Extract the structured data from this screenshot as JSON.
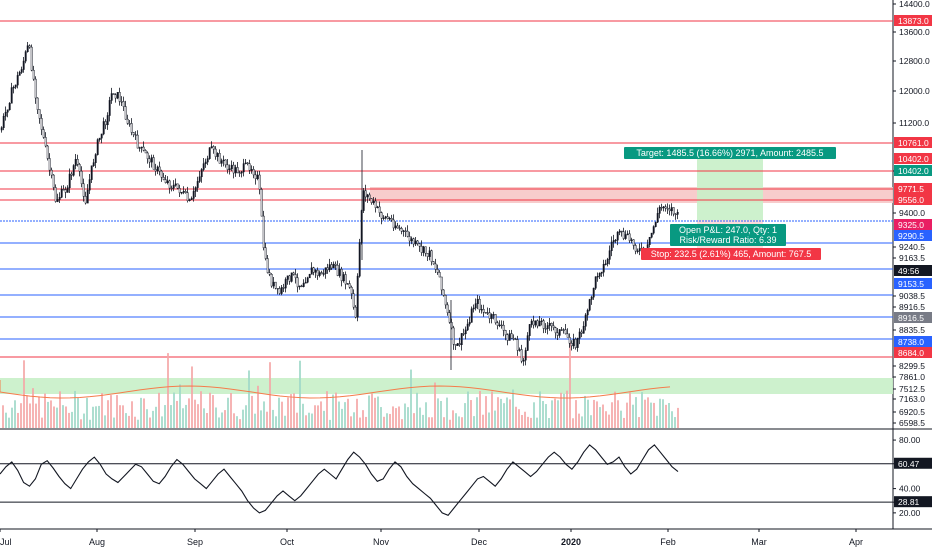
{
  "chart_data": {
    "type": "candlestick",
    "price_axis": {
      "ticks": [
        "14400.0",
        "13600.0",
        "12800.0",
        "12000.0",
        "11200.0",
        "10402.0",
        "9400.0",
        "9240.5",
        "9163.5",
        "9038.5",
        "8916.5",
        "8835.5",
        "8299.5",
        "7861.0",
        "7512.5",
        "7163.0",
        "6920.5",
        "6598.5"
      ],
      "range": [
        6550,
        14500
      ]
    },
    "time_axis": {
      "labels": [
        "Jul",
        "Aug",
        "Sep",
        "Oct",
        "Nov",
        "Dec",
        "2020",
        "Feb",
        "Mar",
        "Apr"
      ],
      "bold_label": "2020"
    },
    "horizontal_levels": [
      {
        "price": 13873.0,
        "label": "13873.0",
        "color": "#f23645"
      },
      {
        "price": 10761.0,
        "label": "10761.0",
        "color": "#f23645"
      },
      {
        "price": 10402.0,
        "label": "10402.0",
        "color": "#f23645"
      },
      {
        "price": 9771.5,
        "label": "9771.5",
        "color": "#f23645"
      },
      {
        "price": 9556.0,
        "label": "9556.0",
        "color": "#f23645"
      },
      {
        "price": 9290.5,
        "label": "9290.5",
        "color": "#2962ff"
      },
      {
        "price": 9153.5,
        "label": "9153.5",
        "color": "#2962ff"
      },
      {
        "price": 8738.0,
        "label": "8738.0",
        "color": "#2962ff"
      },
      {
        "price": 8684.0,
        "label": "8684.0",
        "color": "#f23645"
      }
    ],
    "price_tags": [
      {
        "label": "10402.0",
        "color": "#089981"
      },
      {
        "label": "9325.0",
        "color": "#e91e63"
      },
      {
        "label": "49:56",
        "color": "#131722"
      },
      {
        "label": "8916.5",
        "color": "#787b86"
      }
    ],
    "position": {
      "target_label": "Target: 1485.5 (16.66%) 2971, Amount: 2485.5",
      "pnl_label": "Open P&L: 247.0, Qty: 1",
      "rr_label": "Risk/Reward Ratio: 6.39",
      "stop_label": "Stop: 232.5 (2.61%) 465, Amount: 767.5"
    },
    "rsi": {
      "ticks": [
        "80.00",
        "60.47",
        "40.00",
        "28.81",
        "20.00"
      ],
      "range": [
        10,
        85
      ],
      "levels": [
        60.47,
        28.81
      ],
      "values": [
        52,
        58,
        62,
        55,
        45,
        42,
        48,
        60,
        63,
        57,
        50,
        44,
        40,
        48,
        56,
        62,
        66,
        60,
        52,
        48,
        45,
        50,
        55,
        60,
        58,
        52,
        46,
        44,
        50,
        58,
        64,
        60,
        54,
        48,
        44,
        40,
        46,
        52,
        56,
        50,
        44,
        38,
        30,
        24,
        20,
        22,
        28,
        34,
        38,
        34,
        30,
        34,
        40,
        46,
        52,
        56,
        52,
        48,
        56,
        64,
        70,
        66,
        60,
        52,
        46,
        48,
        56,
        62,
        58,
        50,
        44,
        40,
        36,
        32,
        26,
        20,
        18,
        24,
        30,
        36,
        42,
        48,
        50,
        46,
        42,
        48,
        56,
        62,
        58,
        54,
        50,
        54,
        60,
        66,
        70,
        66,
        60,
        56,
        62,
        70,
        76,
        72,
        66,
        60,
        62,
        66,
        58,
        52,
        56,
        64,
        72,
        76,
        70,
        64,
        58,
        54
      ]
    }
  }
}
